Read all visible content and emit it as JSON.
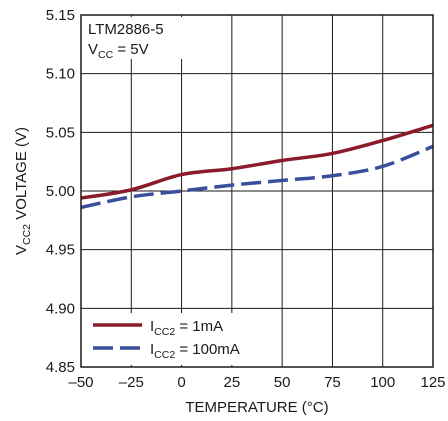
{
  "chart_data": {
    "type": "line",
    "x": [
      -50,
      -25,
      0,
      25,
      50,
      75,
      100,
      125
    ],
    "xlabel": "TEMPERATURE (°C)",
    "ylabel": {
      "main": "V",
      "sub": "CC2",
      "rest": " VOLTAGE (V)"
    },
    "xlim": [
      -50,
      125
    ],
    "ylim": [
      4.85,
      5.15
    ],
    "x_ticks": [
      -50,
      -25,
      0,
      25,
      50,
      75,
      100,
      125
    ],
    "x_tick_labels": [
      "–50",
      "–25",
      "0",
      "25",
      "50",
      "75",
      "100",
      "125"
    ],
    "y_ticks": [
      4.85,
      4.9,
      4.95,
      5.0,
      5.05,
      5.1,
      5.15
    ],
    "y_tick_labels": [
      "4.85",
      "4.90",
      "4.95",
      "5.00",
      "5.05",
      "5.10",
      "5.15"
    ],
    "grid": true,
    "legend_position": "bottom-left",
    "annotation": {
      "part": "LTM2886-5",
      "cond_main": "V",
      "cond_sub": "CC",
      "cond_rest": " = 5V"
    },
    "series": [
      {
        "name": "ICC2 = 1mA",
        "label_main": "I",
        "label_sub": "CC2",
        "label_rest": " = 1mA",
        "color": "#8b1a2b",
        "style": "solid",
        "values": [
          4.994,
          5.001,
          5.014,
          5.019,
          5.026,
          5.032,
          5.043,
          5.056
        ]
      },
      {
        "name": "ICC2 = 100mA",
        "label_main": "I",
        "label_sub": "CC2",
        "label_rest": " = 100mA",
        "color": "#3a4f9c",
        "style": "dashed",
        "values": [
          4.986,
          4.995,
          5.0,
          5.005,
          5.009,
          5.013,
          5.021,
          5.038
        ]
      }
    ]
  }
}
